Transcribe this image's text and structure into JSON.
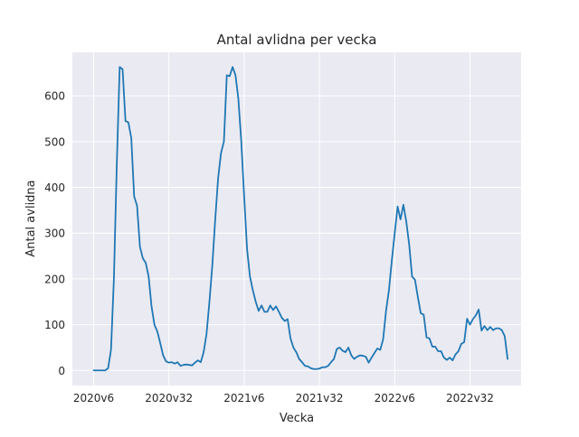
{
  "chart_data": {
    "type": "line",
    "title": "Antal avlidna per vecka",
    "xlabel": "Vecka",
    "ylabel": "Antal avlidna",
    "x_tick_labels": [
      "2020v6",
      "2020v32",
      "2021v6",
      "2021v32",
      "2022v6",
      "2022v32"
    ],
    "y_ticks": [
      0,
      100,
      200,
      300,
      400,
      500,
      600
    ],
    "ylim": [
      -33,
      695
    ],
    "grid": true,
    "x_start": "2020v6",
    "series": [
      {
        "name": "",
        "color": "#1f77b4",
        "values": [
          0,
          0,
          0,
          0,
          0,
          5,
          45,
          200,
          450,
          663,
          658,
          545,
          542,
          508,
          380,
          360,
          270,
          245,
          235,
          205,
          140,
          100,
          85,
          60,
          33,
          20,
          17,
          18,
          15,
          18,
          10,
          12,
          13,
          12,
          11,
          17,
          22,
          18,
          40,
          80,
          150,
          230,
          330,
          420,
          475,
          500,
          645,
          643,
          663,
          645,
          593,
          500,
          380,
          265,
          205,
          175,
          150,
          130,
          142,
          128,
          128,
          142,
          132,
          140,
          128,
          115,
          108,
          112,
          70,
          50,
          40,
          25,
          18,
          10,
          9,
          5,
          3,
          3,
          4,
          7,
          7,
          10,
          18,
          25,
          47,
          50,
          43,
          40,
          50,
          33,
          25,
          30,
          33,
          32,
          30,
          17,
          28,
          38,
          48,
          45,
          68,
          130,
          175,
          240,
          300,
          358,
          330,
          362,
          325,
          275,
          205,
          198,
          160,
          125,
          122,
          72,
          70,
          52,
          52,
          42,
          42,
          28,
          23,
          28,
          22,
          35,
          42,
          58,
          62,
          113,
          100,
          112,
          120,
          133,
          87,
          97,
          88,
          95,
          88,
          92,
          92,
          88,
          75,
          25
        ]
      }
    ]
  }
}
